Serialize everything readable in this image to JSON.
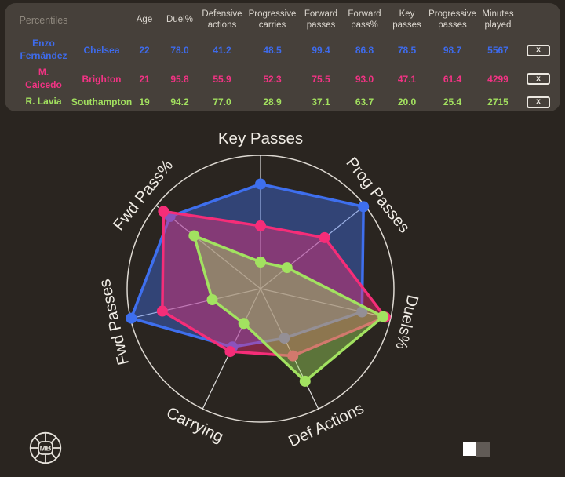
{
  "table": {
    "corner_label": "Percentiles",
    "headers": [
      "Age",
      "Duel%",
      "Defensive actions",
      "Progressive carries",
      "Forward passes",
      "Forward pass%",
      "Key passes",
      "Progressive passes",
      "Minutes played"
    ],
    "remove_label": "x",
    "rows": [
      {
        "name": "Enzo\nFernández",
        "team": "Chelsea",
        "age": "22",
        "duel": "78.0",
        "def_actions": "41.2",
        "prog_carries": "48.5",
        "fwd_passes": "99.4",
        "fwd_pass_pct": "86.8",
        "key_passes": "78.5",
        "prog_passes": "98.7",
        "minutes": "5567",
        "color": "#3e6bec"
      },
      {
        "name": "M.\nCaicedo",
        "team": "Brighton",
        "age": "21",
        "duel": "95.8",
        "def_actions": "55.9",
        "prog_carries": "52.3",
        "fwd_passes": "75.5",
        "fwd_pass_pct": "93.0",
        "key_passes": "47.1",
        "prog_passes": "61.4",
        "minutes": "4299",
        "color": "#f23384"
      },
      {
        "name": "R. Lavia",
        "team": "Southampton",
        "age": "19",
        "duel": "94.2",
        "def_actions": "77.0",
        "prog_carries": "28.9",
        "fwd_passes": "37.1",
        "fwd_pass_pct": "63.7",
        "key_passes": "20.0",
        "prog_passes": "25.4",
        "minutes": "2715",
        "color": "#a2e05f"
      }
    ]
  },
  "chart_data": {
    "type": "radar",
    "axes": [
      "Key Passes",
      "Prog Passes",
      "Duels%",
      "Def Actions",
      "Carrying",
      "Fwd Passes",
      "Fwd Pass%"
    ],
    "scale_max": 100,
    "series": [
      {
        "name": "Enzo Fernández",
        "color": "#3e6fee",
        "values": [
          78.5,
          98.7,
          78.0,
          41.2,
          48.5,
          99.4,
          86.8
        ]
      },
      {
        "name": "M. Caicedo",
        "color": "#f52d78",
        "values": [
          47.1,
          61.4,
          95.8,
          55.9,
          52.3,
          75.5,
          93.0
        ]
      },
      {
        "name": "R. Lavia",
        "color": "#a2e260",
        "values": [
          20.0,
          25.4,
          94.2,
          77.0,
          28.9,
          37.1,
          63.7
        ]
      }
    ],
    "grid": {
      "outer_circle": true,
      "rings": 0,
      "spokes": true
    },
    "legend_position": "none"
  },
  "footer": {
    "logo_text": "MB",
    "swatches": [
      {
        "name": "white",
        "color": "#ffffff"
      },
      {
        "name": "gray",
        "color": "#615b56"
      }
    ]
  },
  "colors": {
    "page_bg": "#2a2520",
    "panel_bg": "#46403a",
    "header_text": "#dcd7d0",
    "muted_text": "#90897f",
    "axis_label": "#f0ece5",
    "spoke": "#ffffff",
    "outer_circle": "#ddd8d1",
    "logo": "#e6e2db"
  }
}
